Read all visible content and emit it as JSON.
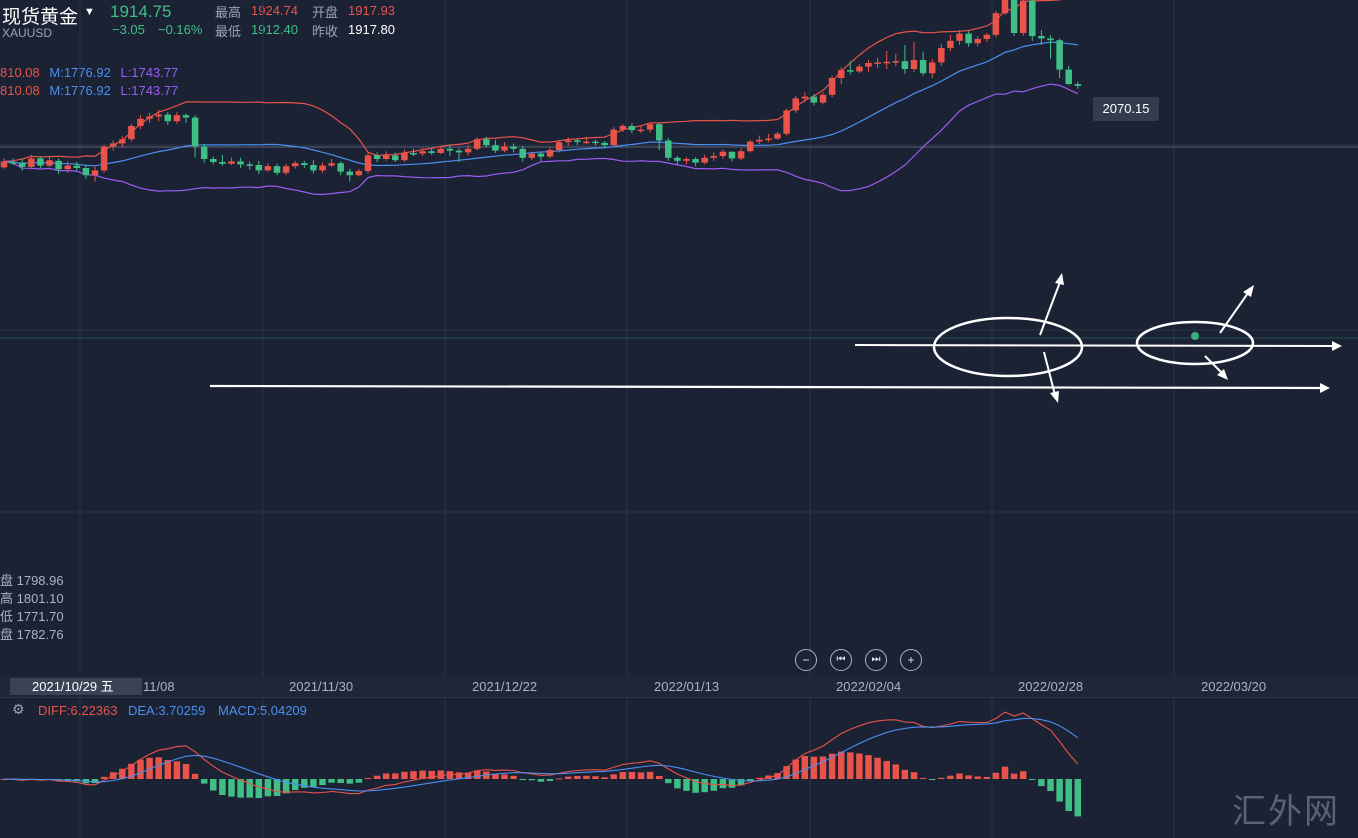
{
  "header": {
    "symbol_name": "现货黄金",
    "symbol_code": "XAUUSD",
    "last_price": "1914.75",
    "change": "−3.05",
    "change_pct": "−0.16%",
    "high_label": "最高",
    "high_value": "1924.74",
    "open_label": "开盘",
    "open_value": "1917.93",
    "low_label": "最低",
    "low_value": "1912.40",
    "prev_close_label": "昨收",
    "prev_close_value": "1917.80"
  },
  "boll": [
    {
      "u": "810.08",
      "m": "M:1776.92",
      "l": "L:1743.77"
    },
    {
      "u": "810.08",
      "m": "M:1776.92",
      "l": "L:1743.77"
    }
  ],
  "ohlc_readout": [
    "盘 1798.96",
    "高 1801.10",
    "低 1771.70",
    "盘 1782.76"
  ],
  "cursor_date": "2021/10/29 五",
  "peak_label": "2070.15",
  "macd_labels": {
    "diff": "DIFF:6.22363",
    "dea": "DEA:3.70259",
    "macd": "MACD:5.04209"
  },
  "nav": {
    "zoom_out": "−",
    "prev": "⏮",
    "next": "⏭",
    "zoom_in": "+"
  },
  "watermark": "汇外网",
  "colors": {
    "up": "#e8534a",
    "down": "#3fbf86",
    "upper": "#e8534a",
    "mid": "#4a8ff0",
    "lower": "#9b5cf5",
    "diff": "#e8534a",
    "dea": "#4a8ff0"
  },
  "chart_data": {
    "type": "candlestick",
    "x_tick_labels": [
      "11/08",
      "2021/11/30",
      "2021/12/22",
      "2022/01/13",
      "2022/02/04",
      "2022/02/28",
      "2022/03/20"
    ],
    "candles": [
      [
        1781,
        1791,
        1796,
        1779
      ],
      [
        1790,
        1789,
        1796,
        1785
      ],
      [
        1789,
        1782,
        1795,
        1776
      ],
      [
        1782,
        1796,
        1802,
        1778
      ],
      [
        1796,
        1784,
        1799,
        1780
      ],
      [
        1784,
        1793,
        1798,
        1782
      ],
      [
        1792,
        1778,
        1796,
        1770
      ],
      [
        1778,
        1784,
        1791,
        1772
      ],
      [
        1784,
        1780,
        1790,
        1775
      ],
      [
        1780,
        1768,
        1786,
        1762
      ],
      [
        1768,
        1776,
        1782,
        1757
      ],
      [
        1776,
        1816,
        1819,
        1772
      ],
      [
        1816,
        1821,
        1826,
        1809
      ],
      [
        1821,
        1828,
        1833,
        1815
      ],
      [
        1828,
        1850,
        1854,
        1824
      ],
      [
        1850,
        1862,
        1868,
        1845
      ],
      [
        1862,
        1866,
        1872,
        1855
      ],
      [
        1866,
        1869,
        1877,
        1858
      ],
      [
        1869,
        1858,
        1873,
        1852
      ],
      [
        1858,
        1868,
        1873,
        1854
      ],
      [
        1868,
        1864,
        1871,
        1855
      ],
      [
        1864,
        1816,
        1868,
        1798
      ],
      [
        1816,
        1795,
        1820,
        1789
      ],
      [
        1795,
        1790,
        1799,
        1786
      ],
      [
        1790,
        1787,
        1802,
        1784
      ],
      [
        1787,
        1791,
        1797,
        1785
      ],
      [
        1791,
        1786,
        1797,
        1780
      ],
      [
        1786,
        1785,
        1791,
        1777
      ],
      [
        1785,
        1776,
        1792,
        1770
      ],
      [
        1776,
        1783,
        1788,
        1774
      ],
      [
        1783,
        1772,
        1787,
        1768
      ],
      [
        1772,
        1783,
        1787,
        1768
      ],
      [
        1783,
        1788,
        1792,
        1779
      ],
      [
        1788,
        1785,
        1792,
        1780
      ],
      [
        1785,
        1776,
        1793,
        1771
      ],
      [
        1776,
        1784,
        1789,
        1772
      ],
      [
        1784,
        1788,
        1795,
        1782
      ],
      [
        1788,
        1774,
        1791,
        1768
      ],
      [
        1774,
        1768,
        1779,
        1757
      ],
      [
        1768,
        1775,
        1778,
        1766
      ],
      [
        1775,
        1801,
        1805,
        1771
      ],
      [
        1801,
        1795,
        1806,
        1790
      ],
      [
        1795,
        1801,
        1808,
        1792
      ],
      [
        1801,
        1793,
        1806,
        1790
      ],
      [
        1793,
        1805,
        1811,
        1790
      ],
      [
        1805,
        1804,
        1812,
        1800
      ],
      [
        1804,
        1808,
        1813,
        1800
      ],
      [
        1808,
        1805,
        1813,
        1802
      ],
      [
        1805,
        1812,
        1816,
        1803
      ],
      [
        1812,
        1809,
        1819,
        1800
      ],
      [
        1809,
        1806,
        1813,
        1790
      ],
      [
        1806,
        1812,
        1818,
        1800
      ],
      [
        1812,
        1828,
        1831,
        1809
      ],
      [
        1828,
        1818,
        1832,
        1814
      ],
      [
        1818,
        1809,
        1827,
        1805
      ],
      [
        1809,
        1816,
        1823,
        1806
      ],
      [
        1816,
        1812,
        1821,
        1806
      ],
      [
        1812,
        1797,
        1817,
        1791
      ],
      [
        1797,
        1804,
        1807,
        1793
      ],
      [
        1804,
        1799,
        1807,
        1792
      ],
      [
        1799,
        1810,
        1814,
        1796
      ],
      [
        1810,
        1823,
        1827,
        1806
      ],
      [
        1823,
        1826,
        1831,
        1817
      ],
      [
        1826,
        1824,
        1830,
        1818
      ],
      [
        1824,
        1824,
        1832,
        1820
      ],
      [
        1824,
        1822,
        1827,
        1818
      ],
      [
        1822,
        1818,
        1825,
        1814
      ],
      [
        1818,
        1844,
        1848,
        1814
      ],
      [
        1844,
        1850,
        1853,
        1840
      ],
      [
        1850,
        1843,
        1855,
        1838
      ],
      [
        1843,
        1844,
        1851,
        1838
      ],
      [
        1844,
        1853,
        1856,
        1839
      ],
      [
        1853,
        1826,
        1855,
        1810
      ],
      [
        1826,
        1797,
        1830,
        1792
      ],
      [
        1797,
        1792,
        1800,
        1786
      ],
      [
        1792,
        1795,
        1798,
        1786
      ],
      [
        1795,
        1789,
        1798,
        1783
      ],
      [
        1789,
        1797,
        1802,
        1786
      ],
      [
        1797,
        1800,
        1806,
        1792
      ],
      [
        1800,
        1807,
        1811,
        1795
      ],
      [
        1807,
        1796,
        1808,
        1791
      ],
      [
        1796,
        1808,
        1813,
        1793
      ],
      [
        1808,
        1824,
        1827,
        1806
      ],
      [
        1824,
        1827,
        1834,
        1820
      ],
      [
        1827,
        1829,
        1837,
        1823
      ],
      [
        1829,
        1837,
        1840,
        1827
      ],
      [
        1837,
        1876,
        1879,
        1834
      ],
      [
        1876,
        1896,
        1900,
        1872
      ],
      [
        1896,
        1899,
        1906,
        1890
      ],
      [
        1899,
        1889,
        1903,
        1884
      ],
      [
        1889,
        1902,
        1906,
        1886
      ],
      [
        1902,
        1930,
        1934,
        1898
      ],
      [
        1930,
        1943,
        1948,
        1920
      ],
      [
        1943,
        1941,
        1958,
        1936
      ],
      [
        1941,
        1949,
        1953,
        1938
      ],
      [
        1949,
        1955,
        1960,
        1940
      ],
      [
        1955,
        1956,
        1964,
        1947
      ],
      [
        1956,
        1957,
        1975,
        1945
      ],
      [
        1957,
        1958,
        1970,
        1950
      ],
      [
        1958,
        1945,
        1985,
        1937
      ],
      [
        1945,
        1960,
        1990,
        1940
      ],
      [
        1960,
        1938,
        1974,
        1934
      ],
      [
        1938,
        1956,
        1962,
        1930
      ],
      [
        1956,
        1980,
        1987,
        1950
      ],
      [
        1980,
        1992,
        2002,
        1975
      ],
      [
        1992,
        2004,
        2010,
        1985
      ],
      [
        2004,
        1988,
        2008,
        1982
      ],
      [
        1988,
        1995,
        2000,
        1983
      ],
      [
        1995,
        2002,
        2005,
        1990
      ],
      [
        2002,
        2038,
        2042,
        1998
      ],
      [
        2038,
        2070,
        2075,
        2035
      ],
      [
        2070,
        2005,
        2072,
        2000
      ],
      [
        2005,
        2059,
        2065,
        2000
      ],
      [
        2059,
        2000,
        2066,
        1992
      ],
      [
        2000,
        1996,
        2010,
        1985
      ],
      [
        1996,
        1993,
        2001,
        1962
      ],
      [
        1993,
        1944,
        1996,
        1930
      ],
      [
        1944,
        1920,
        1950,
        1918
      ],
      [
        1920,
        1917,
        1924,
        1912
      ]
    ]
  }
}
